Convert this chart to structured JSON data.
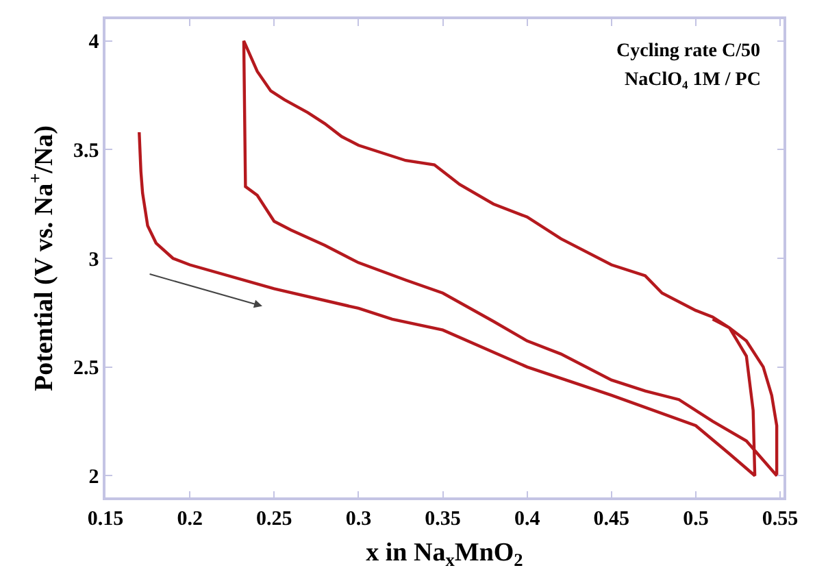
{
  "chart_data": {
    "type": "line",
    "xlabel": "x in Na$_{x}$MnO$_{2}$",
    "ylabel": "Potential (V vs. Na$^{+}$/Na)",
    "annotations": [
      "Cycling rate C/50",
      "NaClO₄ 1M / PC"
    ],
    "x": [
      0.17,
      0.171,
      0.172,
      0.175,
      0.18,
      0.19,
      0.2,
      0.25,
      0.3,
      0.32,
      0.35,
      0.4,
      0.45,
      0.5,
      0.52,
      0.535,
      0.534,
      0.53,
      0.52,
      0.51,
      0.5,
      0.48,
      0.47,
      0.45,
      0.42,
      0.4,
      0.38,
      0.36,
      0.345,
      0.328,
      0.3,
      0.29,
      0.28,
      0.27,
      0.256,
      0.248,
      0.24,
      0.232,
      0.233,
      0.24,
      0.25,
      0.26,
      0.28,
      0.3,
      0.328,
      0.35,
      0.38,
      0.4,
      0.42,
      0.45,
      0.47,
      0.49,
      0.51,
      0.53,
      0.548,
      0.548,
      0.545,
      0.54,
      0.53,
      0.52,
      0.51
    ],
    "series": [
      {
        "color": "#b5191e",
        "values": [
          3.58,
          3.4,
          3.3,
          3.15,
          3.07,
          3.0,
          2.97,
          2.86,
          2.77,
          2.72,
          2.67,
          2.5,
          2.37,
          2.23,
          2.1,
          2.0,
          2.3,
          2.55,
          2.68,
          2.73,
          2.76,
          2.84,
          2.92,
          2.97,
          3.09,
          3.19,
          3.25,
          3.34,
          3.43,
          3.45,
          3.52,
          3.56,
          3.62,
          3.67,
          3.73,
          3.77,
          3.86,
          4.0,
          3.33,
          3.29,
          3.17,
          3.13,
          3.06,
          2.98,
          2.9,
          2.84,
          2.71,
          2.62,
          2.56,
          2.44,
          2.39,
          2.35,
          2.25,
          2.16,
          2.0,
          2.23,
          2.37,
          2.5,
          2.62,
          2.68,
          2.72
        ]
      }
    ],
    "xlim": [
      0.15,
      0.552
    ],
    "ylim": [
      1.9,
      4.1
    ],
    "xticks": [
      0.15,
      0.2,
      0.25,
      0.3,
      0.35,
      0.4,
      0.45,
      0.5,
      0.55
    ],
    "yticks": [
      2,
      2.5,
      3,
      3.5,
      4
    ],
    "marker": "none",
    "line_style": "solid"
  }
}
